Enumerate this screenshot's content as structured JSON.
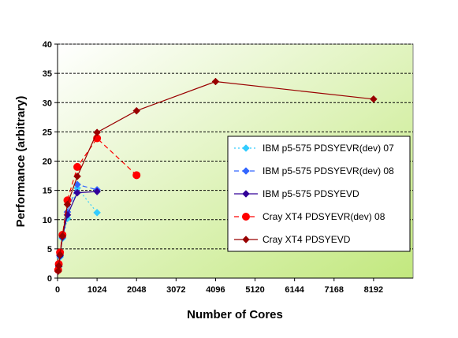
{
  "chart_data": {
    "type": "line",
    "title": "",
    "xlabel": "Number of Cores",
    "ylabel": "Performance (arbitrary)",
    "xlim": [
      0,
      9216
    ],
    "ylim": [
      0,
      40
    ],
    "xticks": [
      0,
      1024,
      2048,
      3072,
      4096,
      5120,
      6144,
      7168,
      8192
    ],
    "yticks": [
      0,
      5,
      10,
      15,
      20,
      25,
      30,
      35,
      40
    ],
    "grid": "horizontal dashed",
    "legend_position": "right",
    "series": [
      {
        "name": "IBM p5-575 PDSYEVR(dev) 07",
        "color": "#33CCFF",
        "marker": "diamond",
        "line_style": "dotted",
        "x": [
          16,
          32,
          64,
          128,
          256,
          512,
          1024
        ],
        "y": [
          1.2,
          2.0,
          3.6,
          6.8,
          10.2,
          15.4,
          11.2
        ]
      },
      {
        "name": "IBM p5-575 PDSYEVR(dev) 08",
        "color": "#3366FF",
        "marker": "diamond",
        "line_style": "dashed",
        "x": [
          16,
          32,
          64,
          128,
          256,
          512,
          1024
        ],
        "y": [
          1.2,
          2.1,
          3.9,
          7.2,
          11.3,
          16.0,
          15.1
        ]
      },
      {
        "name": "IBM p5-575 PDSYEVD",
        "color": "#330099",
        "marker": "diamond",
        "line_style": "solid",
        "x": [
          16,
          32,
          64,
          128,
          256,
          512,
          1024
        ],
        "y": [
          1.2,
          2.0,
          3.8,
          7.0,
          10.8,
          14.6,
          14.8
        ]
      },
      {
        "name": "Cray XT4 PDSYEVR(dev) 08",
        "color": "#FF0000",
        "marker": "circle",
        "line_style": "dashed",
        "x": [
          16,
          32,
          64,
          128,
          256,
          512,
          1024,
          2048
        ],
        "y": [
          1.4,
          2.4,
          4.4,
          7.4,
          13.3,
          19.0,
          23.9,
          17.6
        ]
      },
      {
        "name": "Cray XT4 PDSYEVD",
        "color": "#990000",
        "marker": "diamond",
        "line_style": "solid",
        "x": [
          16,
          32,
          64,
          128,
          256,
          512,
          1024,
          2048,
          4096,
          8192
        ],
        "y": [
          1.2,
          2.1,
          4.0,
          7.2,
          12.6,
          17.4,
          24.9,
          28.6,
          33.6,
          30.6
        ]
      }
    ]
  }
}
